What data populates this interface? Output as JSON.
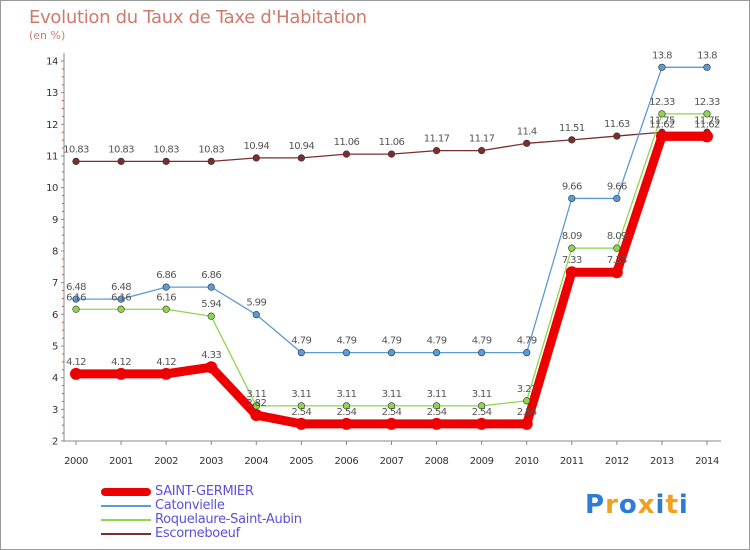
{
  "title": "Evolution du Taux de Taxe d'Habitation",
  "subtitle": "(en %)",
  "logo": {
    "letters": [
      "P",
      "r",
      "o",
      "x",
      "i",
      "t",
      "i"
    ],
    "colors": [
      "#2e7bd6",
      "#f0a020",
      "#2e7bd6",
      "#f0a020",
      "#2e7bd6",
      "#f0a020",
      "#2e7bd6"
    ]
  },
  "chart_data": {
    "type": "line",
    "x": [
      2000,
      2001,
      2002,
      2003,
      2004,
      2005,
      2006,
      2007,
      2008,
      2009,
      2010,
      2011,
      2012,
      2013,
      2014
    ],
    "ylim": [
      2,
      14
    ],
    "yticks": [
      2,
      3,
      4,
      5,
      6,
      7,
      8,
      9,
      10,
      11,
      12,
      13,
      14
    ],
    "legend_position": "bottom-left",
    "grid": false,
    "series": [
      {
        "name": "SAINT-GERMIER",
        "color": "#ee0000",
        "values": [
          4.12,
          4.12,
          4.12,
          4.33,
          2.82,
          2.54,
          2.54,
          2.54,
          2.54,
          2.54,
          2.54,
          7.33,
          7.33,
          11.62,
          11.62
        ],
        "labels": [
          "4.12",
          "4.12",
          "4.12",
          "4.33",
          "2.82",
          "2.54",
          "2.54",
          "2.54",
          "2.54",
          "2.54",
          "2.54",
          "7.33",
          "7.33",
          "11.62",
          "11.62"
        ]
      },
      {
        "name": "Catonvielle",
        "color": "#5b9bd5",
        "values": [
          6.48,
          6.48,
          6.86,
          6.86,
          5.99,
          4.79,
          4.79,
          4.79,
          4.79,
          4.79,
          4.79,
          9.66,
          9.66,
          13.8,
          13.8
        ],
        "labels": [
          "6.48",
          "6.48",
          "6.86",
          "6.86",
          "5.99",
          "4.79",
          "4.79",
          "4.79",
          "4.79",
          "4.79",
          "4.79",
          "9.66",
          "9.66",
          "13.8",
          "13.8"
        ]
      },
      {
        "name": "Roquelaure-Saint-Aubin",
        "color": "#8ed64c",
        "values": [
          6.16,
          6.16,
          6.16,
          5.94,
          3.11,
          3.11,
          3.11,
          3.11,
          3.11,
          3.11,
          3.27,
          8.09,
          8.09,
          12.33,
          12.33
        ],
        "labels": [
          "6.16",
          "6.16",
          "6.16",
          "5.94",
          "3.11",
          "3.11",
          "3.11",
          "3.11",
          "3.11",
          "3.11",
          "3.27",
          "8.09",
          "8.09",
          "12.33",
          "12.33"
        ]
      },
      {
        "name": "Escorneboeuf",
        "color": "#7b2e2e",
        "values": [
          10.83,
          10.83,
          10.83,
          10.83,
          10.94,
          10.94,
          11.06,
          11.06,
          11.17,
          11.17,
          11.4,
          11.51,
          11.63,
          11.75,
          11.75
        ],
        "labels": [
          "10.83",
          "10.83",
          "10.83",
          "10.83",
          "10.94",
          "10.94",
          "11.06",
          "11.06",
          "11.17",
          "11.17",
          "11.4",
          "11.51",
          "11.63",
          "11.75",
          "11.75"
        ]
      }
    ]
  }
}
